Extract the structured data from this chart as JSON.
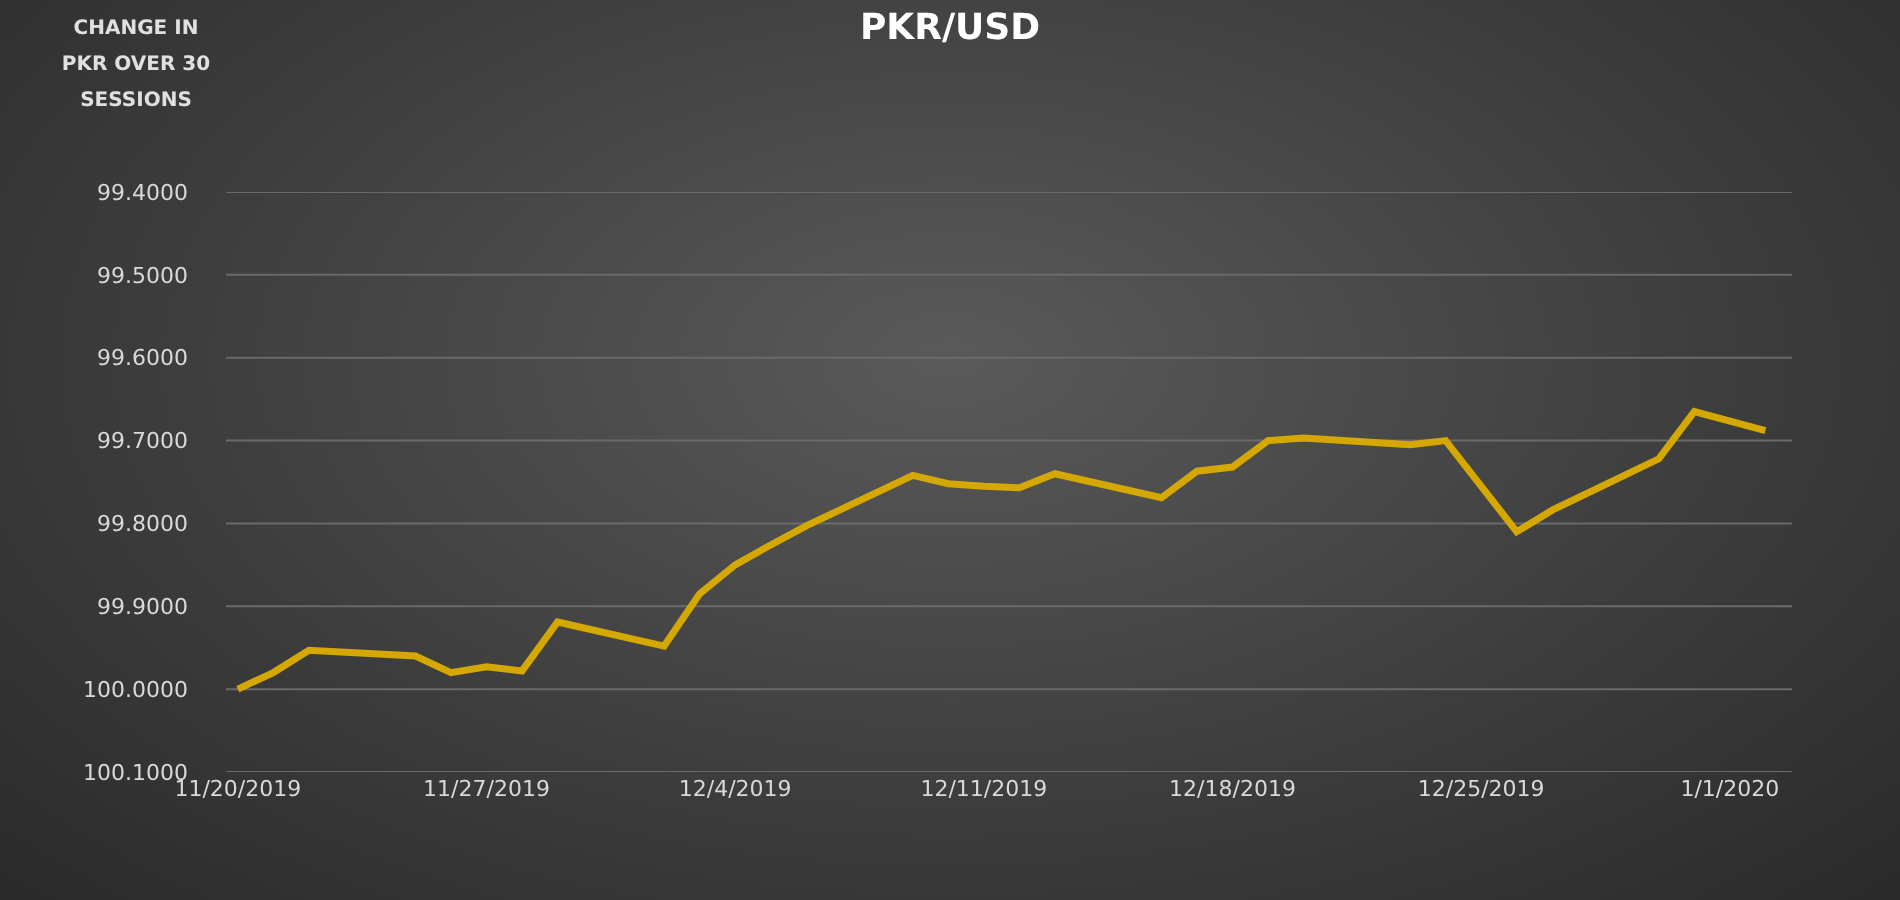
{
  "chart_data": {
    "type": "line",
    "title": "PKR/USD",
    "ylabel": "CHANGE IN PKR OVER 30 SESSIONS",
    "x": [
      "2019-11-20",
      "2019-11-21",
      "2019-11-22",
      "2019-11-25",
      "2019-11-26",
      "2019-11-27",
      "2019-11-28",
      "2019-11-29",
      "2019-12-02",
      "2019-12-03",
      "2019-12-04",
      "2019-12-05",
      "2019-12-06",
      "2019-12-09",
      "2019-12-10",
      "2019-12-11",
      "2019-12-12",
      "2019-12-13",
      "2019-12-16",
      "2019-12-17",
      "2019-12-18",
      "2019-12-19",
      "2019-12-20",
      "2019-12-23",
      "2019-12-24",
      "2019-12-26",
      "2019-12-27",
      "2019-12-30",
      "2019-12-31",
      "2020-01-02"
    ],
    "series": [
      {
        "color": "#d4a800",
        "values": [
          100.0,
          99.98,
          99.953,
          99.96,
          99.98,
          99.973,
          99.978,
          99.919,
          99.948,
          99.885,
          99.85,
          99.826,
          99.803,
          99.742,
          99.752,
          99.755,
          99.757,
          99.74,
          99.769,
          99.737,
          99.732,
          99.7,
          99.697,
          99.705,
          99.7,
          99.81,
          99.784,
          99.722,
          99.665,
          99.688
        ]
      }
    ],
    "xlim": [
      "2019-11-19T16:00",
      "2020-01-02T18:00"
    ],
    "xticks": [
      {
        "value": "2019-11-20",
        "label": "11/20/2019"
      },
      {
        "value": "2019-11-27",
        "label": "11/27/2019"
      },
      {
        "value": "2019-12-04",
        "label": "12/4/2019"
      },
      {
        "value": "2019-12-11",
        "label": "12/11/2019"
      },
      {
        "value": "2019-12-18",
        "label": "12/18/2019"
      },
      {
        "value": "2019-12-25",
        "label": "12/25/2019"
      },
      {
        "value": "2020-01-01",
        "label": "1/1/2020"
      }
    ],
    "ylim": [
      100.1,
      99.4
    ],
    "yticks": [
      {
        "value": 99.4,
        "label": "99.4000"
      },
      {
        "value": 99.5,
        "label": "99.5000"
      },
      {
        "value": 99.6,
        "label": "99.6000"
      },
      {
        "value": 99.7,
        "label": "99.7000"
      },
      {
        "value": 99.8,
        "label": "99.8000"
      },
      {
        "value": 99.9,
        "label": "99.9000"
      },
      {
        "value": 100.0,
        "label": "100.0000"
      },
      {
        "value": 100.1,
        "label": "100.1000"
      }
    ],
    "grid": "y",
    "marker": "none",
    "line_style": "solid"
  }
}
